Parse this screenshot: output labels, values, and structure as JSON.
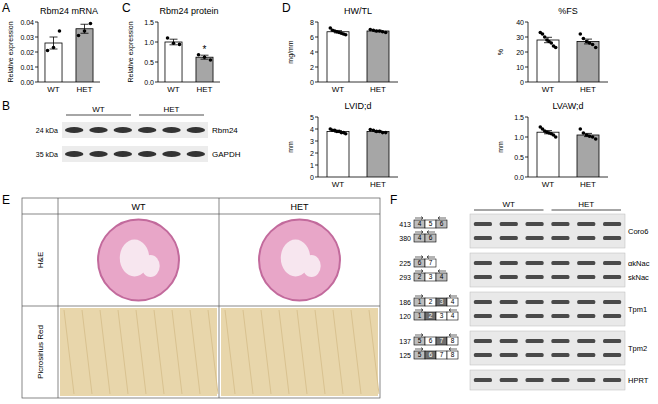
{
  "chart_data": [
    {
      "type": "bar",
      "panel_label": "A",
      "title": "Rbm24 mRNA",
      "y_label": "Relative expression",
      "categories": [
        "WT",
        "HET"
      ],
      "values": [
        0.026,
        0.0355
      ],
      "errors": [
        0.004,
        0.003
      ],
      "points": [
        [
          0.021,
          0.023,
          0.034
        ],
        [
          0.031,
          0.034,
          0.039
        ]
      ],
      "colors": [
        "#ffffff",
        "#a6a6a6"
      ],
      "marker": "circle",
      "ylim": [
        0,
        0.04
      ],
      "yticks": [
        {
          "value": 0,
          "label": "0.00"
        },
        {
          "value": 0.01,
          "label": "0.01"
        },
        {
          "value": 0.02,
          "label": "0.02"
        },
        {
          "value": 0.03,
          "label": "0.03"
        },
        {
          "value": 0.04,
          "label": "0.04"
        }
      ]
    },
    {
      "type": "bar",
      "panel_label": "C",
      "title": "Rbm24 protein",
      "y_label": "Relative expression",
      "categories": [
        "WT",
        "HET"
      ],
      "values": [
        1.0,
        0.62
      ],
      "errors": [
        0.07,
        0.05
      ],
      "points": [
        [
          1.1,
          0.97,
          0.94
        ],
        [
          0.68,
          0.62,
          0.55
        ]
      ],
      "colors": [
        "#ffffff",
        "#a6a6a6"
      ],
      "marker": "circle",
      "annotations": [
        {
          "category": "HET",
          "text": "*"
        }
      ],
      "ylim": [
        0,
        1.5
      ],
      "yticks": [
        {
          "value": 0,
          "label": "0.0"
        },
        0.5,
        {
          "value": 1,
          "label": "1.0"
        },
        1.5
      ]
    },
    {
      "type": "bar",
      "panel_label": "D",
      "title": "HW/TL",
      "y_label": "mg/mm",
      "categories": [
        "WT",
        "HET"
      ],
      "values": [
        6.7,
        6.8
      ],
      "errors": [
        0.15,
        0.1
      ],
      "points": [
        [
          7.2,
          6.9,
          6.8,
          6.7,
          6.6,
          6.5,
          6.4,
          6.3
        ],
        [
          7.0,
          6.9,
          6.8,
          6.8,
          6.7,
          6.6
        ]
      ],
      "colors": [
        "#ffffff",
        "#a6a6a6"
      ],
      "marker": "circle",
      "ylim": [
        0,
        8
      ],
      "yticks": [
        0,
        2,
        4,
        6,
        8
      ]
    },
    {
      "type": "bar",
      "title": "%FS",
      "y_label": "%",
      "categories": [
        "WT",
        "HET"
      ],
      "values": [
        28,
        27
      ],
      "errors": [
        1.8,
        1.6
      ],
      "points": [
        [
          33,
          32,
          30,
          28,
          27,
          26,
          24,
          23
        ],
        [
          32,
          29,
          27,
          26,
          25,
          23
        ]
      ],
      "colors": [
        "#ffffff",
        "#a6a6a6"
      ],
      "marker": "circle",
      "ylim": [
        0,
        40
      ],
      "yticks": [
        0,
        10,
        20,
        30,
        40
      ]
    },
    {
      "type": "bar",
      "title": "LVID;d",
      "y_label": "mm",
      "categories": [
        "WT",
        "HET"
      ],
      "values": [
        3.8,
        3.8
      ],
      "errors": [
        0.06,
        0.05
      ],
      "points": [
        [
          4.0,
          3.9,
          3.9,
          3.8,
          3.8,
          3.7,
          3.7,
          3.6
        ],
        [
          3.95,
          3.9,
          3.8,
          3.8,
          3.7,
          3.7
        ]
      ],
      "colors": [
        "#ffffff",
        "#a6a6a6"
      ],
      "marker": "circle",
      "ylim": [
        0,
        5
      ],
      "yticks": [
        0,
        1,
        2,
        3,
        4,
        5
      ]
    },
    {
      "type": "bar",
      "title": "LVAW;d",
      "y_label": "mm",
      "categories": [
        "WT",
        "HET"
      ],
      "values": [
        1.12,
        1.05
      ],
      "errors": [
        0.04,
        0.04
      ],
      "points": [
        [
          1.25,
          1.2,
          1.15,
          1.12,
          1.1,
          1.08,
          1.05,
          1.0
        ],
        [
          1.2,
          1.1,
          1.05,
          1.02,
          1.0,
          0.95
        ]
      ],
      "colors": [
        "#ffffff",
        "#a6a6a6"
      ],
      "marker": "circle",
      "ylim": [
        0,
        1.5
      ],
      "yticks": [
        {
          "value": 0,
          "label": "0.0"
        },
        0.5,
        {
          "value": 1,
          "label": "1.0"
        },
        1.5
      ]
    }
  ],
  "blot": {
    "panel_label": "B",
    "groups": [
      "WT",
      "HET"
    ],
    "rows": [
      {
        "size": "24 kDa",
        "protein": "Rbm24"
      },
      {
        "size": "35 kDa",
        "protein": "GAPDH"
      }
    ]
  },
  "histology": {
    "panel_label": "E",
    "columns": [
      "WT",
      "HET"
    ],
    "rows": [
      "H&E",
      "Picrosirius Red"
    ]
  },
  "gel": {
    "panel_label": "F",
    "groups": [
      "WT",
      "HET"
    ],
    "strips": [
      {
        "labels": [
          "Coro6"
        ],
        "isoforms": [
          {
            "size": 413,
            "exons": [
              {
                "label": "4",
                "color": "#bdbdbd"
              },
              {
                "label": "5",
                "color": "#ffffff"
              },
              {
                "label": "6",
                "color": "#bdbdbd"
              }
            ]
          },
          {
            "size": 380,
            "exons": [
              {
                "label": "4",
                "color": "#bdbdbd"
              },
              {
                "label": "6",
                "color": "#bdbdbd"
              }
            ]
          }
        ]
      },
      {
        "labels": [
          "αkNac",
          "skNac"
        ],
        "isoforms": [
          {
            "size": 225,
            "exons": [
              {
                "label": "6",
                "color": "#bdbdbd"
              },
              {
                "label": "7",
                "color": "#ffffff"
              }
            ]
          },
          {
            "size": 293,
            "exons": [
              {
                "label": "2",
                "color": "#bdbdbd"
              },
              {
                "label": "3",
                "color": "#ffffff"
              },
              {
                "label": "4",
                "color": "#bdbdbd"
              }
            ]
          }
        ]
      },
      {
        "labels": [
          "Tpm1"
        ],
        "isoforms": [
          {
            "size": 186,
            "exons": [
              {
                "label": "1",
                "color": "#bdbdbd"
              },
              {
                "label": "2",
                "color": "#ffffff"
              },
              {
                "label": "3",
                "color": "#6e6e6e"
              },
              {
                "label": "4",
                "color": "#ffffff"
              }
            ]
          },
          {
            "size": 120,
            "exons": [
              {
                "label": "1",
                "color": "#bdbdbd"
              },
              {
                "label": "2",
                "color": "#6e6e6e"
              },
              {
                "label": "3",
                "color": "#ffffff"
              },
              {
                "label": "4",
                "color": "#ffffff"
              }
            ]
          }
        ]
      },
      {
        "labels": [
          "Tpm2"
        ],
        "isoforms": [
          {
            "size": 137,
            "exons": [
              {
                "label": "5",
                "color": "#bdbdbd"
              },
              {
                "label": "6",
                "color": "#ffffff"
              },
              {
                "label": "7",
                "color": "#6e6e6e"
              },
              {
                "label": "8",
                "color": "#ffffff"
              }
            ]
          },
          {
            "size": 125,
            "exons": [
              {
                "label": "5",
                "color": "#bdbdbd"
              },
              {
                "label": "6",
                "color": "#6e6e6e"
              },
              {
                "label": "7",
                "color": "#ffffff"
              },
              {
                "label": "8",
                "color": "#ffffff"
              }
            ]
          }
        ]
      },
      {
        "labels": [
          "HPRT"
        ],
        "isoforms": []
      }
    ]
  }
}
